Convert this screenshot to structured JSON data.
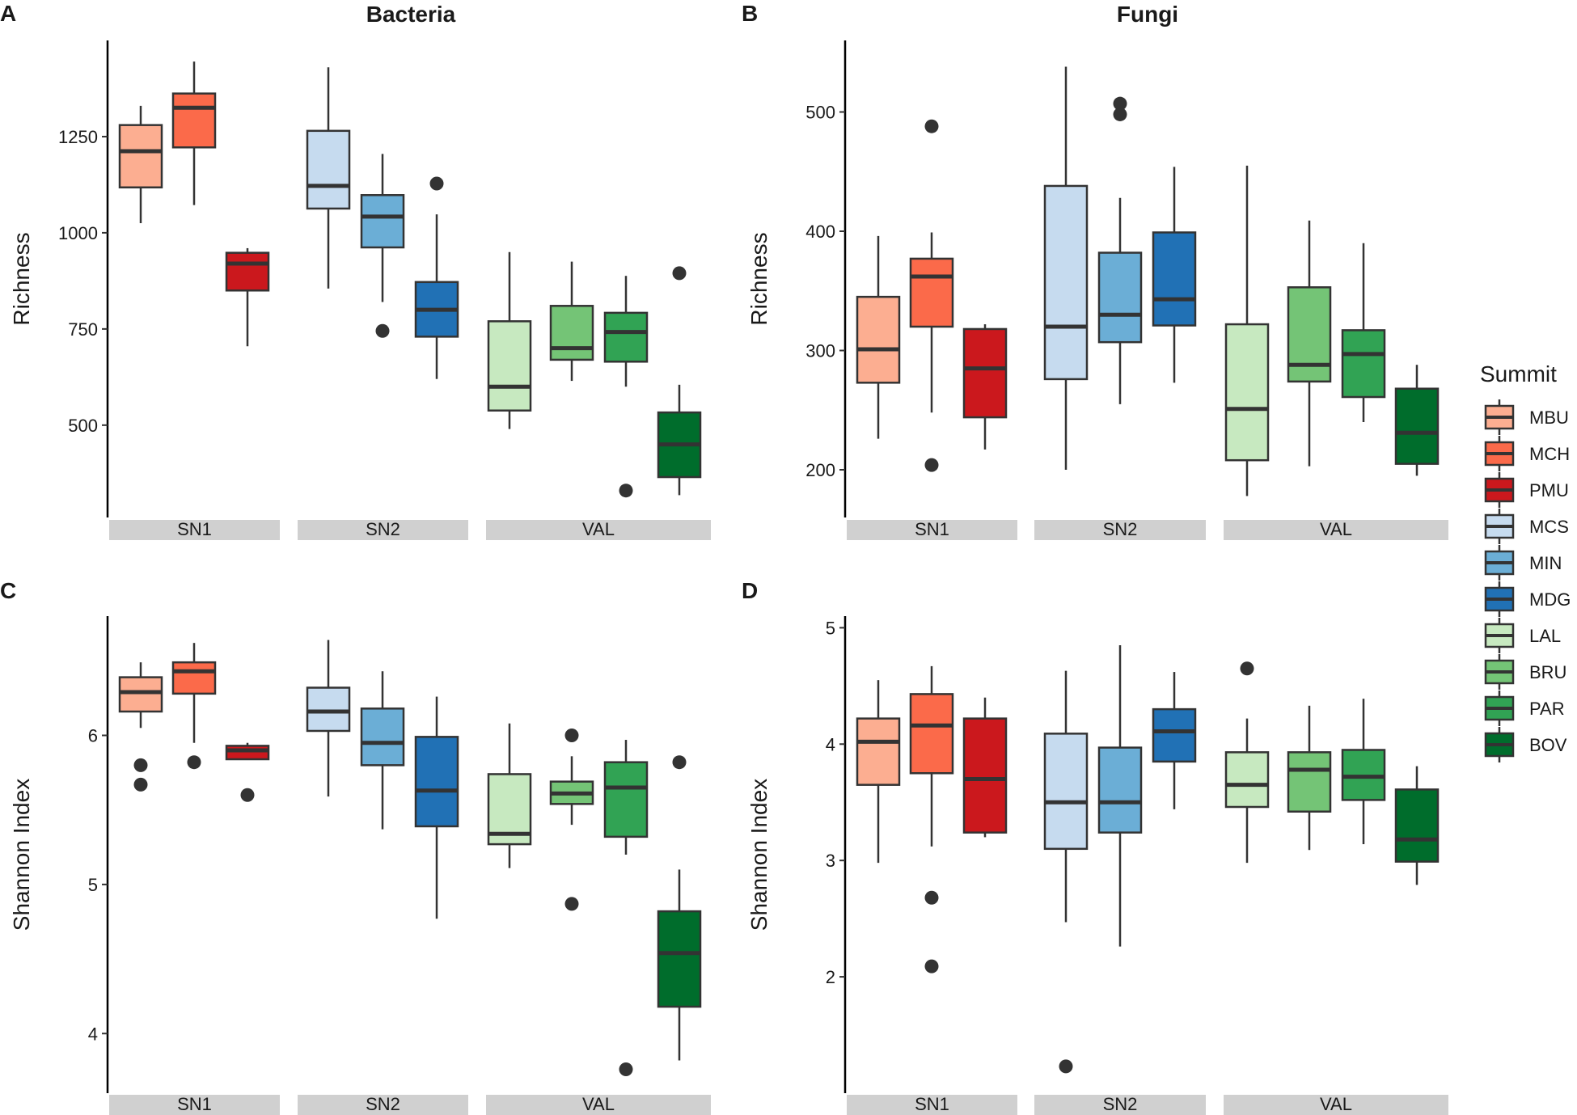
{
  "chart_data": [
    {
      "panel": "A",
      "type": "boxplot",
      "title": "Bacteria",
      "ylabel": "Richness",
      "xlabel": "",
      "ylim": [
        260,
        1500
      ],
      "yticks": [
        500,
        750,
        1000,
        1250
      ],
      "facets": [
        {
          "label": "SN1",
          "boxes": [
            {
              "summit": "MBU",
              "whisker_low": 1025,
              "q1": 1118,
              "median": 1212,
              "q3": 1280,
              "whisker_high": 1330,
              "outliers": []
            },
            {
              "summit": "MCH",
              "whisker_low": 1072,
              "q1": 1222,
              "median": 1325,
              "q3": 1362,
              "whisker_high": 1445,
              "outliers": []
            },
            {
              "summit": "PMU",
              "whisker_low": 705,
              "q1": 850,
              "median": 920,
              "q3": 948,
              "whisker_high": 960,
              "outliers": []
            }
          ]
        },
        {
          "label": "SN2",
          "boxes": [
            {
              "summit": "MCS",
              "whisker_low": 855,
              "q1": 1063,
              "median": 1122,
              "q3": 1265,
              "whisker_high": 1430,
              "outliers": []
            },
            {
              "summit": "MIN",
              "whisker_low": 820,
              "q1": 962,
              "median": 1042,
              "q3": 1098,
              "whisker_high": 1205,
              "outliers": [
                745
              ]
            },
            {
              "summit": "MDG",
              "whisker_low": 620,
              "q1": 730,
              "median": 800,
              "q3": 872,
              "whisker_high": 1048,
              "outliers": [
                1128
              ]
            }
          ]
        },
        {
          "label": "VAL",
          "boxes": [
            {
              "summit": "LAL",
              "whisker_low": 490,
              "q1": 538,
              "median": 600,
              "q3": 770,
              "whisker_high": 950,
              "outliers": []
            },
            {
              "summit": "BRU",
              "whisker_low": 615,
              "q1": 670,
              "median": 700,
              "q3": 810,
              "whisker_high": 925,
              "outliers": []
            },
            {
              "summit": "PAR",
              "whisker_low": 600,
              "q1": 665,
              "median": 742,
              "q3": 792,
              "whisker_high": 888,
              "outliers": [
                330
              ]
            },
            {
              "summit": "BOV",
              "whisker_low": 318,
              "q1": 365,
              "median": 450,
              "q3": 533,
              "whisker_high": 605,
              "outliers": [
                895
              ]
            }
          ]
        }
      ]
    },
    {
      "panel": "B",
      "type": "boxplot",
      "title": "Fungi",
      "ylabel": "Richness",
      "xlabel": "",
      "ylim": [
        160,
        560
      ],
      "yticks": [
        200,
        300,
        400,
        500
      ],
      "facets": [
        {
          "label": "SN1",
          "boxes": [
            {
              "summit": "MBU",
              "whisker_low": 226,
              "q1": 273,
              "median": 301,
              "q3": 345,
              "whisker_high": 396,
              "outliers": []
            },
            {
              "summit": "MCH",
              "whisker_low": 248,
              "q1": 320,
              "median": 362,
              "q3": 377,
              "whisker_high": 399,
              "outliers": [
                488,
                204
              ]
            },
            {
              "summit": "PMU",
              "whisker_low": 217,
              "q1": 244,
              "median": 285,
              "q3": 318,
              "whisker_high": 322,
              "outliers": []
            }
          ]
        },
        {
          "label": "SN2",
          "boxes": [
            {
              "summit": "MCS",
              "whisker_low": 200,
              "q1": 276,
              "median": 320,
              "q3": 438,
              "whisker_high": 538,
              "outliers": []
            },
            {
              "summit": "MIN",
              "whisker_low": 255,
              "q1": 307,
              "median": 330,
              "q3": 382,
              "whisker_high": 428,
              "outliers": [
                507,
                498
              ]
            },
            {
              "summit": "MDG",
              "whisker_low": 273,
              "q1": 321,
              "median": 343,
              "q3": 399,
              "whisker_high": 454,
              "outliers": []
            }
          ]
        },
        {
          "label": "VAL",
          "boxes": [
            {
              "summit": "LAL",
              "whisker_low": 178,
              "q1": 208,
              "median": 251,
              "q3": 322,
              "whisker_high": 455,
              "outliers": []
            },
            {
              "summit": "BRU",
              "whisker_low": 203,
              "q1": 274,
              "median": 288,
              "q3": 353,
              "whisker_high": 409,
              "outliers": []
            },
            {
              "summit": "PAR",
              "whisker_low": 240,
              "q1": 261,
              "median": 297,
              "q3": 317,
              "whisker_high": 390,
              "outliers": []
            },
            {
              "summit": "BOV",
              "whisker_low": 195,
              "q1": 205,
              "median": 231,
              "q3": 268,
              "whisker_high": 288,
              "outliers": []
            }
          ]
        }
      ]
    },
    {
      "panel": "C",
      "type": "boxplot",
      "title": "",
      "ylabel": "Shannon Index",
      "xlabel": "",
      "ylim": [
        3.6,
        6.8
      ],
      "yticks": [
        4,
        5,
        6
      ],
      "facets": [
        {
          "label": "SN1",
          "boxes": [
            {
              "summit": "MBU",
              "whisker_low": 6.05,
              "q1": 6.16,
              "median": 6.29,
              "q3": 6.39,
              "whisker_high": 6.49,
              "outliers": [
                5.8,
                5.67
              ]
            },
            {
              "summit": "MCH",
              "whisker_low": 5.95,
              "q1": 6.28,
              "median": 6.43,
              "q3": 6.49,
              "whisker_high": 6.62,
              "outliers": [
                5.82
              ]
            },
            {
              "summit": "PMU",
              "whisker_low": 5.84,
              "q1": 5.84,
              "median": 5.9,
              "q3": 5.93,
              "whisker_high": 5.95,
              "outliers": [
                5.6
              ]
            }
          ]
        },
        {
          "label": "SN2",
          "boxes": [
            {
              "summit": "MCS",
              "whisker_low": 5.59,
              "q1": 6.03,
              "median": 6.16,
              "q3": 6.32,
              "whisker_high": 6.64,
              "outliers": []
            },
            {
              "summit": "MIN",
              "whisker_low": 5.37,
              "q1": 5.8,
              "median": 5.95,
              "q3": 6.18,
              "whisker_high": 6.43,
              "outliers": []
            },
            {
              "summit": "MDG",
              "whisker_low": 4.77,
              "q1": 5.39,
              "median": 5.63,
              "q3": 5.99,
              "whisker_high": 6.26,
              "outliers": []
            }
          ]
        },
        {
          "label": "VAL",
          "boxes": [
            {
              "summit": "LAL",
              "whisker_low": 5.11,
              "q1": 5.27,
              "median": 5.34,
              "q3": 5.74,
              "whisker_high": 6.08,
              "outliers": []
            },
            {
              "summit": "BRU",
              "whisker_low": 5.4,
              "q1": 5.54,
              "median": 5.61,
              "q3": 5.69,
              "whisker_high": 5.86,
              "outliers": [
                6.0,
                4.87
              ]
            },
            {
              "summit": "PAR",
              "whisker_low": 5.2,
              "q1": 5.32,
              "median": 5.65,
              "q3": 5.82,
              "whisker_high": 5.97,
              "outliers": [
                3.76
              ]
            },
            {
              "summit": "BOV",
              "whisker_low": 3.82,
              "q1": 4.18,
              "median": 4.54,
              "q3": 4.82,
              "whisker_high": 5.1,
              "outliers": [
                5.82
              ]
            }
          ]
        }
      ]
    },
    {
      "panel": "D",
      "type": "boxplot",
      "title": "",
      "ylabel": "Shannon Index",
      "xlabel": "",
      "ylim": [
        1.0,
        5.1
      ],
      "yticks": [
        2,
        3,
        4,
        5
      ],
      "facets": [
        {
          "label": "SN1",
          "boxes": [
            {
              "summit": "MBU",
              "whisker_low": 2.98,
              "q1": 3.65,
              "median": 4.02,
              "q3": 4.22,
              "whisker_high": 4.55,
              "outliers": []
            },
            {
              "summit": "MCH",
              "whisker_low": 3.12,
              "q1": 3.75,
              "median": 4.16,
              "q3": 4.43,
              "whisker_high": 4.67,
              "outliers": [
                2.68,
                2.09
              ]
            },
            {
              "summit": "PMU",
              "whisker_low": 3.2,
              "q1": 3.24,
              "median": 3.7,
              "q3": 4.22,
              "whisker_high": 4.4,
              "outliers": []
            }
          ]
        },
        {
          "label": "SN2",
          "boxes": [
            {
              "summit": "MCS",
              "whisker_low": 2.47,
              "q1": 3.1,
              "median": 3.5,
              "q3": 4.09,
              "whisker_high": 4.63,
              "outliers": [
                1.23
              ]
            },
            {
              "summit": "MIN",
              "whisker_low": 2.26,
              "q1": 3.24,
              "median": 3.5,
              "q3": 3.97,
              "whisker_high": 4.85,
              "outliers": []
            },
            {
              "summit": "MDG",
              "whisker_low": 3.44,
              "q1": 3.85,
              "median": 4.11,
              "q3": 4.3,
              "whisker_high": 4.62,
              "outliers": []
            }
          ]
        },
        {
          "label": "VAL",
          "boxes": [
            {
              "summit": "LAL",
              "whisker_low": 2.98,
              "q1": 3.46,
              "median": 3.65,
              "q3": 3.93,
              "whisker_high": 4.22,
              "outliers": [
                4.65
              ]
            },
            {
              "summit": "BRU",
              "whisker_low": 3.09,
              "q1": 3.42,
              "median": 3.78,
              "q3": 3.93,
              "whisker_high": 4.33,
              "outliers": []
            },
            {
              "summit": "PAR",
              "whisker_low": 3.14,
              "q1": 3.52,
              "median": 3.72,
              "q3": 3.95,
              "whisker_high": 4.39,
              "outliers": []
            },
            {
              "summit": "BOV",
              "whisker_low": 2.79,
              "q1": 2.99,
              "median": 3.18,
              "q3": 3.61,
              "whisker_high": 3.81,
              "outliers": []
            }
          ]
        }
      ]
    }
  ],
  "legend": {
    "title": "Summit",
    "items": [
      {
        "label": "MBU",
        "color": "#fcae91"
      },
      {
        "label": "MCH",
        "color": "#fb6a4a"
      },
      {
        "label": "PMU",
        "color": "#cb181d"
      },
      {
        "label": "MCS",
        "color": "#c6dbef"
      },
      {
        "label": "MIN",
        "color": "#6baed6"
      },
      {
        "label": "MDG",
        "color": "#2171b5"
      },
      {
        "label": "LAL",
        "color": "#c7e9c0"
      },
      {
        "label": "BRU",
        "color": "#74c476"
      },
      {
        "label": "PAR",
        "color": "#31a354"
      },
      {
        "label": "BOV",
        "color": "#006d2c"
      }
    ]
  },
  "colors": {
    "outline": "#333333",
    "strip_background": "#d0d0d0",
    "axis": "#000000"
  }
}
